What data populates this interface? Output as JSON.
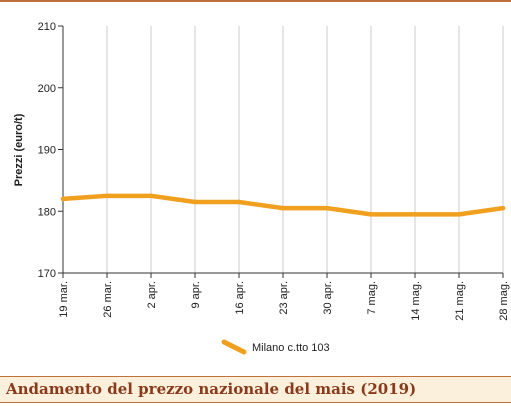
{
  "chart_data": {
    "type": "line",
    "title": "Andamento del prezzo nazionale del mais (2019)",
    "ylabel": "Prezzi (euro/t)",
    "xlabel": "",
    "categories": [
      "19 mar.",
      "26 mar.",
      "2 apr.",
      "9 apr.",
      "16 apr.",
      "23 apr.",
      "30 apr.",
      "7 mag.",
      "14 mag.",
      "21 mag.",
      "28 mag."
    ],
    "series": [
      {
        "name": "Milano  c.tto 103",
        "values": [
          182,
          182.5,
          182.5,
          181.5,
          181.5,
          180.5,
          180.5,
          179.5,
          179.5,
          179.5,
          180.5
        ],
        "color": "#f0a01e"
      }
    ],
    "ylim": [
      170,
      210
    ],
    "yticks": [
      "170",
      "180",
      "190",
      "200",
      "210"
    ],
    "grid": "vertical",
    "legend": "bottom-center"
  },
  "colors": {
    "accent": "#c0703a",
    "caption_bg": "#fbf0dc",
    "caption_text": "#8a3a1a",
    "line": "#f0a01e",
    "grid": "#cccccc"
  }
}
